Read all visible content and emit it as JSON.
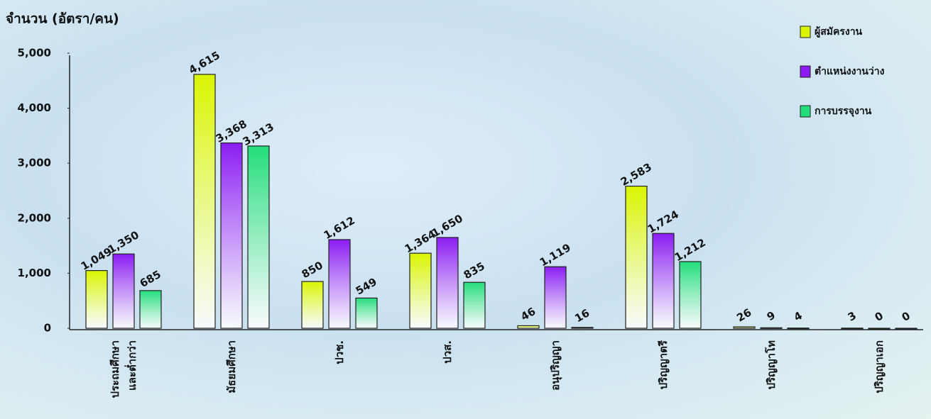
{
  "chart_data": {
    "type": "bar",
    "y_label": "จำนวน (อัตรา/คน)",
    "categories": [
      "ประถมศึกษา\nและต่ำกว่า",
      "มัธยมศึกษา",
      "ปวช.",
      "ปวส.",
      "อนุปริญญา",
      "ปริญญาตรี",
      "ปริญญาโท",
      "ปริญญาเอก"
    ],
    "series": [
      {
        "name": "ผู้สมัครงาน",
        "color": "#d9f500",
        "values": [
          1049,
          4615,
          850,
          1364,
          46,
          2583,
          26,
          3
        ],
        "value_labels": [
          "1,049",
          "4,615",
          "850",
          "1,364",
          "46",
          "2,583",
          "26",
          "3"
        ]
      },
      {
        "name": "ตำแหน่งงานว่าง",
        "color": "#8a1cf2",
        "values": [
          1350,
          3368,
          1612,
          1650,
          1119,
          1724,
          9,
          0
        ],
        "value_labels": [
          "1,350",
          "3,368",
          "1,612",
          "1,650",
          "1,119",
          "1,724",
          "9",
          "0"
        ]
      },
      {
        "name": "การบรรจุงาน",
        "color": "#22dd7a",
        "values": [
          685,
          3313,
          549,
          835,
          16,
          1212,
          4,
          0
        ],
        "value_labels": [
          "685",
          "3,313",
          "549",
          "835",
          "16",
          "1,212",
          "4",
          "0"
        ]
      }
    ],
    "ylim": [
      0,
      5000
    ],
    "yticks": [
      0,
      {
        "value": 1000,
        "label": "1,000"
      },
      {
        "value": 2000,
        "label": "2,000"
      },
      {
        "value": 3000,
        "label": "3,000"
      },
      {
        "value": 4000,
        "label": "4,000"
      },
      {
        "value": 5000,
        "label": "5,000"
      }
    ],
    "grid": false,
    "legend": "upper right"
  }
}
